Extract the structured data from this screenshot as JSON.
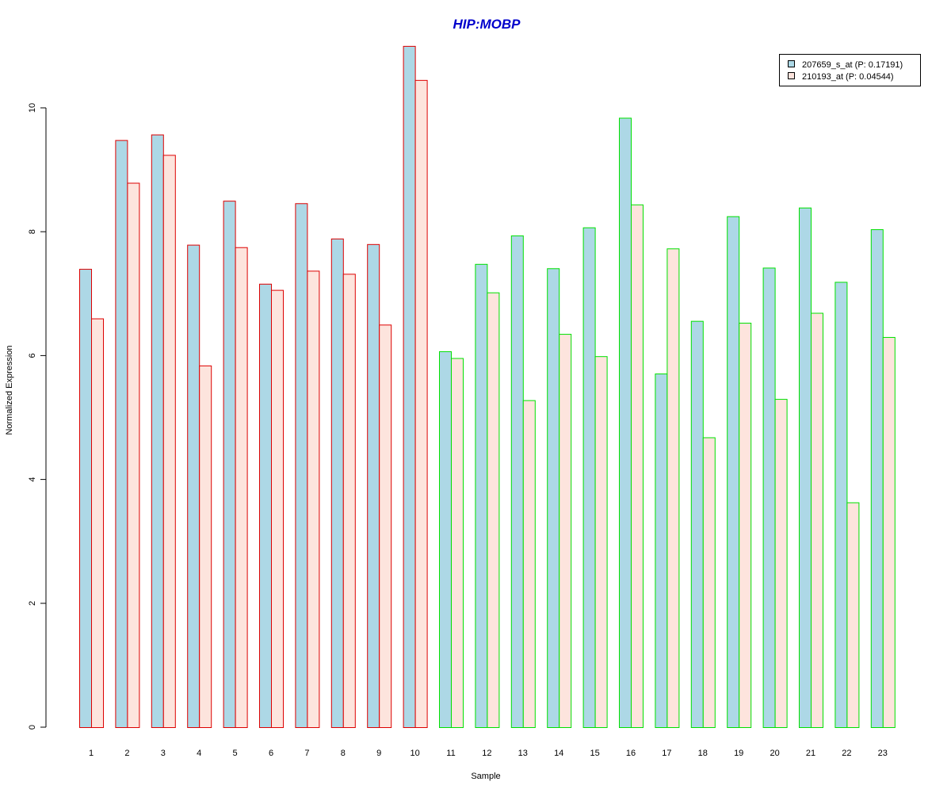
{
  "chart_data": {
    "type": "bar",
    "title": "HIP:MOBP",
    "xlabel": "Sample",
    "ylabel": "Normalized Expression",
    "categories": [
      "1",
      "2",
      "3",
      "4",
      "5",
      "6",
      "7",
      "8",
      "9",
      "10",
      "11",
      "12",
      "13",
      "14",
      "15",
      "16",
      "17",
      "18",
      "19",
      "20",
      "21",
      "22",
      "23"
    ],
    "yticks": [
      "0",
      "2",
      "4",
      "6",
      "8",
      "10"
    ],
    "ylim": [
      0,
      11
    ],
    "series": [
      {
        "name": "207659_s_at (P: 0.17191)",
        "values": [
          7.4,
          9.48,
          9.57,
          7.79,
          8.5,
          7.16,
          8.46,
          7.89,
          7.8,
          11.0,
          6.07,
          7.48,
          7.94,
          7.41,
          8.07,
          9.84,
          5.71,
          6.56,
          8.25,
          7.42,
          8.39,
          7.19,
          8.04
        ]
      },
      {
        "name": "210193_at (P: 0.04544)",
        "values": [
          6.6,
          8.79,
          9.24,
          5.84,
          7.75,
          7.06,
          7.37,
          7.32,
          6.5,
          10.45,
          5.96,
          7.02,
          5.28,
          6.35,
          5.99,
          8.44,
          7.73,
          4.68,
          6.53,
          5.3,
          6.69,
          3.63,
          6.3
        ]
      }
    ],
    "group_of_sample": [
      "A",
      "A",
      "A",
      "A",
      "A",
      "A",
      "A",
      "A",
      "A",
      "A",
      "B",
      "B",
      "B",
      "B",
      "B",
      "B",
      "B",
      "B",
      "B",
      "B",
      "B",
      "B",
      "B"
    ],
    "colors": {
      "series_fill": [
        "#add8e6",
        "#fde4dd"
      ],
      "group_border": {
        "A": "#dd0000",
        "B": "#00e000"
      },
      "title": "#0000cc",
      "axis": "#000000"
    },
    "legend_position": "top-right",
    "grid": false
  }
}
